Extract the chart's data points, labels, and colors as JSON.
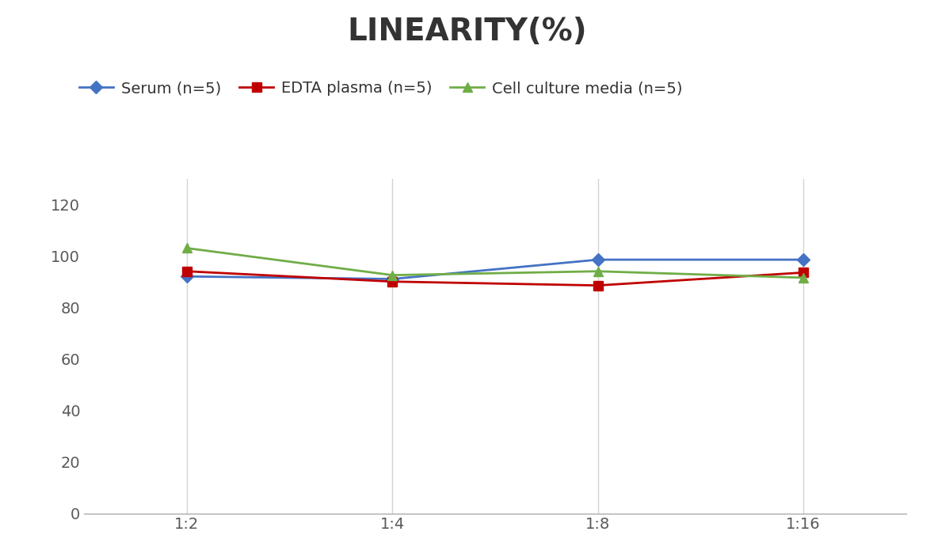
{
  "title": "LINEARITY(%)",
  "title_fontsize": 28,
  "title_fontweight": "bold",
  "x_labels": [
    "1:2",
    "1:4",
    "1:8",
    "1:16"
  ],
  "x_positions": [
    0,
    1,
    2,
    3
  ],
  "series": [
    {
      "label": "Serum (n=5)",
      "values": [
        92,
        91,
        98.5,
        98.5
      ],
      "color": "#4472C4",
      "marker": "D",
      "markersize": 8,
      "linewidth": 2
    },
    {
      "label": "EDTA plasma (n=5)",
      "values": [
        94,
        90,
        88.5,
        93.5
      ],
      "color": "#C00000",
      "marker": "s",
      "markersize": 8,
      "linewidth": 2
    },
    {
      "label": "Cell culture media (n=5)",
      "values": [
        103,
        92.5,
        94,
        91.5
      ],
      "color": "#70AD47",
      "marker": "^",
      "markersize": 9,
      "linewidth": 2
    }
  ],
  "ylim": [
    0,
    130
  ],
  "yticks": [
    0,
    20,
    40,
    60,
    80,
    100,
    120
  ],
  "grid_color": "#D3D3D3",
  "background_color": "#FFFFFF",
  "legend_fontsize": 14,
  "tick_fontsize": 14,
  "axis_tick_color": "#595959"
}
